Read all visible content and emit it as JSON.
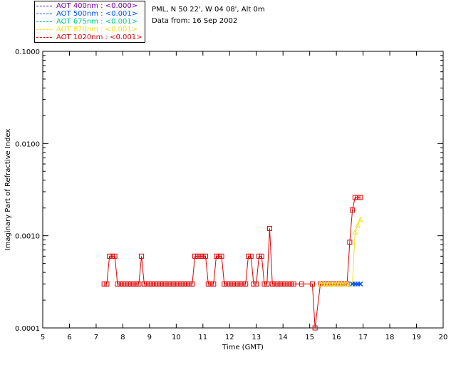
{
  "legend": {
    "items": [
      {
        "label": "AOT  400nm : <0.000>",
        "color": "#7000a0"
      },
      {
        "label": "AOT  500nm : <0.001>",
        "color": "#0050ff"
      },
      {
        "label": "AOT  675nm : <0.001>",
        "color": "#00d080"
      },
      {
        "label": "AOT  870nm : <0.001>",
        "color": "#f0e020"
      },
      {
        "label": "AOT 1020nm : <0.001>",
        "color": "#e00000"
      }
    ]
  },
  "info": {
    "site": "PML, N 50 22', W 04 08', Alt 0m",
    "date": "Data from: 16 Sep 2002"
  },
  "chart_data": {
    "type": "line",
    "xlabel": "Time (GMT)",
    "ylabel": "Imaginary Part of Refractive Index",
    "xlim": [
      5,
      20
    ],
    "ylim": [
      0.0001,
      0.1
    ],
    "yscale": "log",
    "xticks": [
      "5",
      "6",
      "7",
      "8",
      "9",
      "10",
      "11",
      "12",
      "13",
      "14",
      "15",
      "16",
      "17",
      "18",
      "19",
      "20"
    ],
    "yticks": [
      "0.0001",
      "0.0010",
      "0.0100",
      "0.1000"
    ],
    "grid": false,
    "series": [
      {
        "color": "#e00000",
        "marker": "square",
        "x": [
          7.3,
          7.4,
          7.5,
          7.6,
          7.7,
          7.8,
          7.9,
          8.0,
          8.1,
          8.2,
          8.3,
          8.4,
          8.5,
          8.6,
          8.7,
          8.8,
          8.9,
          9.0,
          9.1,
          9.2,
          9.3,
          9.4,
          9.5,
          9.6,
          9.7,
          9.8,
          9.9,
          10.0,
          10.1,
          10.2,
          10.3,
          10.4,
          10.5,
          10.6,
          10.7,
          10.8,
          10.9,
          11.0,
          11.1,
          11.2,
          11.3,
          11.4,
          11.5,
          11.6,
          11.7,
          11.8,
          11.9,
          12.0,
          12.1,
          12.2,
          12.3,
          12.4,
          12.5,
          12.6,
          12.7,
          12.8,
          12.9,
          13.0,
          13.1,
          13.2,
          13.3,
          13.4,
          13.5,
          13.6,
          13.7,
          13.8,
          13.9,
          14.0,
          14.1,
          14.2,
          14.3,
          14.4,
          14.7,
          15.1,
          15.2,
          15.4,
          15.5,
          15.6,
          15.7,
          15.8,
          15.9,
          16.0,
          16.1,
          16.2,
          16.3,
          16.4,
          16.5,
          16.6,
          16.7,
          16.8,
          16.9
        ],
        "y": [
          0.0003,
          0.0003,
          0.0006,
          0.0006,
          0.0006,
          0.0003,
          0.0003,
          0.0003,
          0.0003,
          0.0003,
          0.0003,
          0.0003,
          0.0003,
          0.0003,
          0.0006,
          0.0003,
          0.0003,
          0.0003,
          0.0003,
          0.0003,
          0.0003,
          0.0003,
          0.0003,
          0.0003,
          0.0003,
          0.0003,
          0.0003,
          0.0003,
          0.0003,
          0.0003,
          0.0003,
          0.0003,
          0.0003,
          0.0003,
          0.0006,
          0.0006,
          0.0006,
          0.0006,
          0.0006,
          0.0003,
          0.0003,
          0.0003,
          0.0006,
          0.0006,
          0.0006,
          0.0003,
          0.0003,
          0.0003,
          0.0003,
          0.0003,
          0.0003,
          0.0003,
          0.0003,
          0.0003,
          0.0006,
          0.0006,
          0.0003,
          0.0003,
          0.0006,
          0.0006,
          0.0003,
          0.0003,
          0.0012,
          0.0003,
          0.0003,
          0.0003,
          0.0003,
          0.0003,
          0.0003,
          0.0003,
          0.0003,
          0.0003,
          0.0003,
          0.0003,
          0.0001,
          0.0003,
          0.0003,
          0.0003,
          0.0003,
          0.0003,
          0.0003,
          0.0003,
          0.0003,
          0.0003,
          0.0003,
          0.0003,
          0.00085,
          0.0019,
          0.0026,
          0.0026,
          0.0026
        ]
      },
      {
        "color": "#f0e020",
        "marker": "triangle",
        "x": [
          15.4,
          15.5,
          15.6,
          15.7,
          15.8,
          15.9,
          16.0,
          16.1,
          16.2,
          16.3,
          16.4,
          16.6,
          16.7,
          16.8,
          16.9
        ],
        "y": [
          0.0003,
          0.0003,
          0.0003,
          0.0003,
          0.0003,
          0.0003,
          0.0003,
          0.0003,
          0.0003,
          0.0003,
          0.0003,
          0.0003,
          0.0011,
          0.0013,
          0.0015
        ]
      },
      {
        "color": "#0050ff",
        "marker": "cross",
        "x": [
          16.6,
          16.7,
          16.8,
          16.9
        ],
        "y": [
          0.0003,
          0.0003,
          0.0003,
          0.0003
        ]
      }
    ]
  }
}
